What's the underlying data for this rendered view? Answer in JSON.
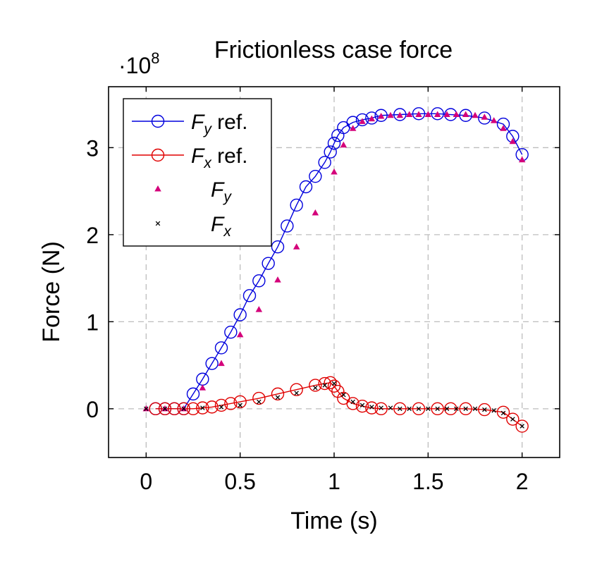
{
  "chart_data": {
    "type": "line",
    "title": "Frictionless case force",
    "xlabel": "Time (s)",
    "ylabel": "Force (N)",
    "y_exponent_label": "·10",
    "y_exponent_power": "8",
    "xlim": [
      -0.2,
      2.2
    ],
    "ylim": [
      -0.56,
      3.7
    ],
    "y_scale": 100000000,
    "xticks": [
      0,
      0.5,
      1,
      1.5,
      2
    ],
    "xtick_labels": [
      "0",
      "0.5",
      "1",
      "1.5",
      "2"
    ],
    "yticks": [
      0,
      1,
      2,
      3
    ],
    "ytick_labels": [
      "0",
      "1",
      "2",
      "3"
    ],
    "grid": true,
    "legend_position": "top-left",
    "colors": {
      "fy_ref": "#0000dd",
      "fx_ref": "#e00000",
      "fy": "#d4007a",
      "fx": "#000000"
    },
    "series": [
      {
        "name": "F_y ref.",
        "legend_main": "F",
        "legend_sub": "y",
        "legend_suffix": " ref.",
        "style": "line-circle",
        "x": [
          0.05,
          0.1,
          0.15,
          0.2,
          0.25,
          0.3,
          0.35,
          0.4,
          0.45,
          0.5,
          0.55,
          0.6,
          0.65,
          0.7,
          0.75,
          0.8,
          0.85,
          0.9,
          0.95,
          0.98,
          1.0,
          1.02,
          1.05,
          1.1,
          1.15,
          1.2,
          1.25,
          1.35,
          1.45,
          1.55,
          1.62,
          1.7,
          1.8,
          1.9,
          1.95,
          2.0
        ],
        "y": [
          0.0,
          0.0,
          0.0,
          0.0,
          0.17,
          0.34,
          0.52,
          0.7,
          0.88,
          1.08,
          1.3,
          1.47,
          1.67,
          1.86,
          2.1,
          2.34,
          2.55,
          2.67,
          2.83,
          2.95,
          3.05,
          3.14,
          3.23,
          3.29,
          3.32,
          3.34,
          3.37,
          3.38,
          3.39,
          3.39,
          3.38,
          3.37,
          3.34,
          3.27,
          3.13,
          2.92
        ]
      },
      {
        "name": "F_x ref.",
        "legend_main": "F",
        "legend_sub": "x",
        "legend_suffix": " ref.",
        "style": "line-circle",
        "x": [
          0.05,
          0.1,
          0.15,
          0.2,
          0.25,
          0.3,
          0.35,
          0.4,
          0.45,
          0.5,
          0.6,
          0.7,
          0.8,
          0.9,
          0.95,
          0.98,
          1.0,
          1.02,
          1.05,
          1.1,
          1.15,
          1.2,
          1.25,
          1.35,
          1.45,
          1.55,
          1.62,
          1.7,
          1.8,
          1.9,
          1.95,
          2.0
        ],
        "y": [
          0.0,
          0.0,
          0.0,
          0.0,
          0.0,
          0.01,
          0.02,
          0.04,
          0.06,
          0.08,
          0.12,
          0.17,
          0.22,
          0.27,
          0.29,
          0.3,
          0.26,
          0.2,
          0.12,
          0.06,
          0.03,
          0.01,
          0.0,
          0.0,
          0.0,
          0.0,
          0.0,
          0.0,
          -0.01,
          -0.04,
          -0.12,
          -0.2
        ]
      },
      {
        "name": "F_y",
        "legend_main": "F",
        "legend_sub": "y",
        "legend_suffix": "",
        "style": "triangle",
        "x": [
          0.0,
          0.1,
          0.2,
          0.3,
          0.4,
          0.5,
          0.6,
          0.7,
          0.8,
          0.9,
          1.0,
          1.05,
          1.1,
          1.15,
          1.2,
          1.25,
          1.3,
          1.35,
          1.4,
          1.45,
          1.5,
          1.55,
          1.6,
          1.65,
          1.7,
          1.75,
          1.8,
          1.85,
          1.9,
          1.95,
          2.0
        ],
        "y": [
          0.0,
          0.0,
          0.0,
          0.24,
          0.52,
          0.85,
          1.14,
          1.48,
          1.86,
          2.25,
          2.72,
          3.03,
          3.22,
          3.3,
          3.33,
          3.36,
          3.37,
          3.37,
          3.38,
          3.38,
          3.38,
          3.38,
          3.38,
          3.38,
          3.38,
          3.37,
          3.35,
          3.31,
          3.22,
          3.07,
          2.86
        ]
      },
      {
        "name": "F_x",
        "legend_main": "F",
        "legend_sub": "x",
        "legend_suffix": "",
        "style": "cross",
        "x": [
          0.0,
          0.1,
          0.2,
          0.3,
          0.4,
          0.5,
          0.6,
          0.7,
          0.8,
          0.9,
          0.95,
          1.0,
          1.05,
          1.1,
          1.15,
          1.2,
          1.25,
          1.3,
          1.35,
          1.4,
          1.45,
          1.5,
          1.55,
          1.6,
          1.65,
          1.7,
          1.75,
          1.8,
          1.85,
          1.9,
          1.95,
          2.0
        ],
        "y": [
          0.0,
          0.0,
          0.0,
          0.01,
          0.02,
          0.04,
          0.08,
          0.13,
          0.18,
          0.24,
          0.27,
          0.29,
          0.16,
          0.08,
          0.04,
          0.02,
          0.01,
          0.01,
          0.0,
          0.0,
          0.0,
          0.0,
          0.0,
          0.0,
          0.0,
          0.0,
          0.0,
          -0.01,
          -0.02,
          -0.05,
          -0.12,
          -0.2
        ]
      }
    ]
  }
}
